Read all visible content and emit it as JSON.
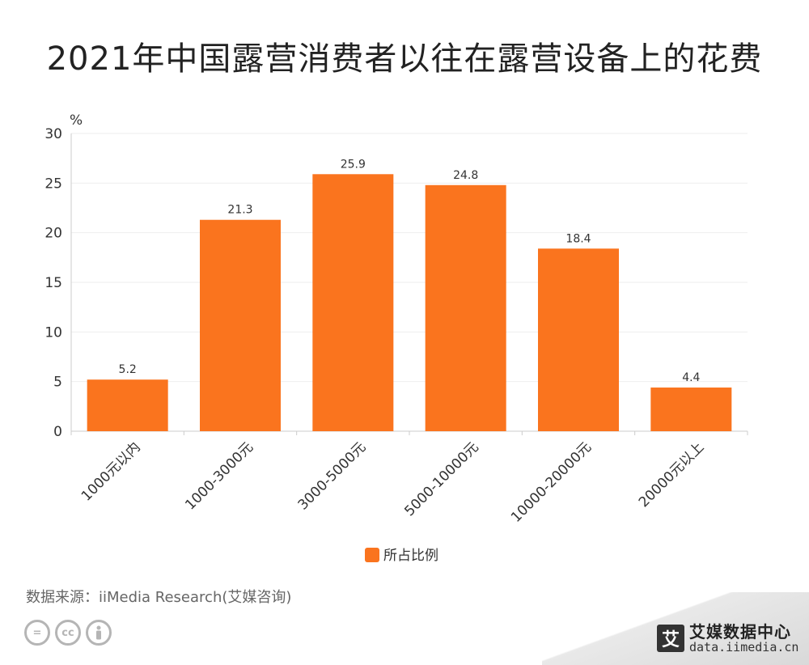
{
  "title": "2021年中国露营消费者以往在露营设备上的花费",
  "source": "数据来源：iiMedia Research(艾媒咨询)",
  "brand": {
    "mark": "艾",
    "name": "艾媒数据中心",
    "url": "data.iimedia.cn"
  },
  "license_icons": [
    "equals-icon",
    "cc-icon",
    "person-icon"
  ],
  "colors": {
    "bar": "#fa741e",
    "axis": "#cccccc",
    "grid": "#eeeeee",
    "text": "#333333"
  },
  "chart_data": {
    "type": "bar",
    "title": "2021年中国露营消费者以往在露营设备上的花费",
    "ylabel": "%",
    "xlabel": "",
    "ylim": [
      0,
      30
    ],
    "yticks": [
      0,
      5,
      10,
      15,
      20,
      25,
      30
    ],
    "categories": [
      "1000元以内",
      "1000-3000元",
      "3000-5000元",
      "5000-10000元",
      "10000-20000元",
      "20000元以上"
    ],
    "series": [
      {
        "name": "所占比例",
        "values": [
          5.2,
          21.3,
          25.9,
          24.8,
          18.4,
          4.4
        ]
      }
    ],
    "grid": true,
    "legend": "bottom-center"
  }
}
